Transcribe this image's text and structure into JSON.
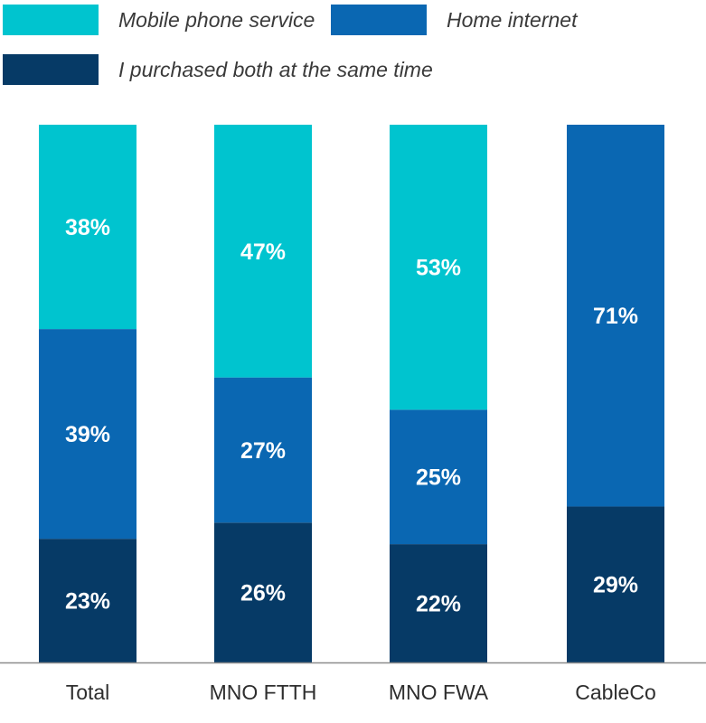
{
  "chart_data": {
    "type": "bar",
    "stacked": true,
    "categories": [
      "Total",
      "MNO FTTH",
      "MNO FWA",
      "CableCo"
    ],
    "series": [
      {
        "name": "I purchased both at the same time",
        "color": "#063a66",
        "values": [
          23,
          26,
          22,
          29
        ]
      },
      {
        "name": "Home internet",
        "color": "#0a67b2",
        "values": [
          39,
          27,
          25,
          71
        ]
      },
      {
        "name": "Mobile phone service",
        "color": "#00c4cf",
        "values": [
          38,
          47,
          53,
          0
        ]
      }
    ],
    "legend_position": "top",
    "value_labels_suffix": "%",
    "ylim": [
      0,
      100
    ],
    "grid": false
  },
  "legend": [
    {
      "label": "Mobile phone service",
      "color": "#00c4cf"
    },
    {
      "label": "Home internet",
      "color": "#0a67b2"
    },
    {
      "label": "I purchased both at the same time",
      "color": "#063a66"
    }
  ]
}
